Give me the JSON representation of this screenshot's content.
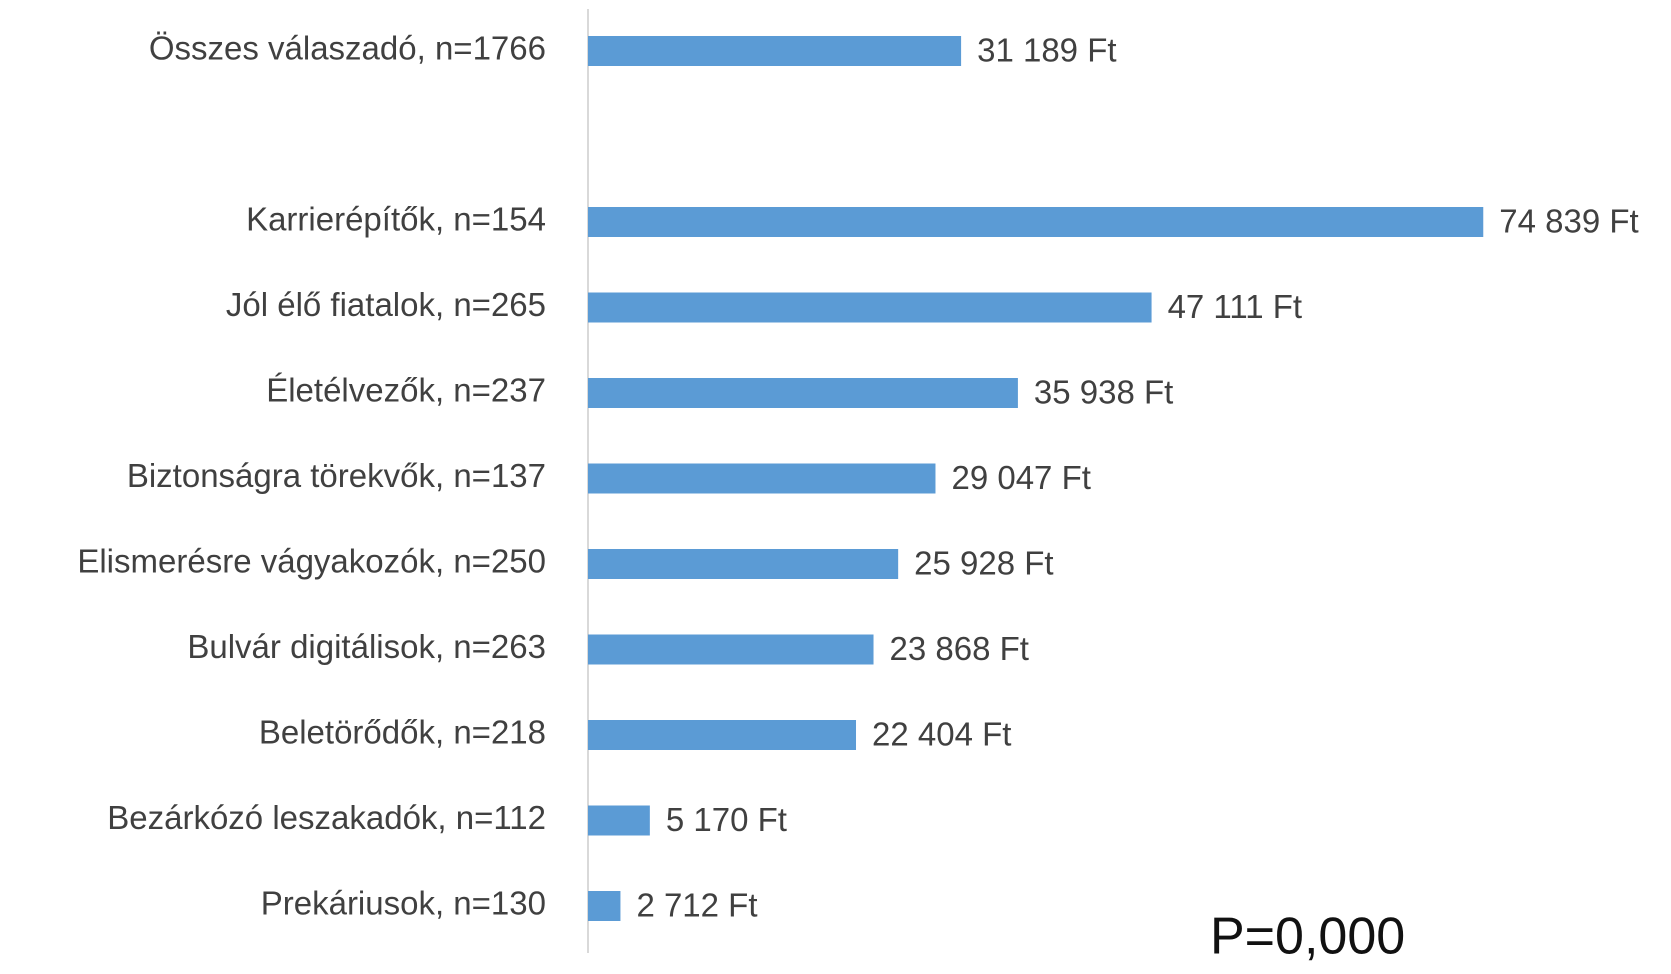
{
  "chart_data": {
    "type": "bar",
    "orientation": "horizontal",
    "categories": [
      "Összes válaszadó, n=1766",
      null,
      "Karrierépítők, n=154",
      "Jól élő fiatalok, n=265",
      "Életélvezők, n=237",
      "Biztonságra törekvők, n=137",
      "Elismerésre vágyakozók, n=250",
      "Bulvár digitálisok, n=263",
      "Beletörődők, n=218",
      "Bezárkózó leszakadók, n=112",
      "Prekáriusok, n=130"
    ],
    "values": [
      31189,
      null,
      74839,
      47111,
      35938,
      29047,
      25928,
      23868,
      22404,
      5170,
      2712
    ],
    "value_labels": [
      "31 189 Ft",
      null,
      "74 839 Ft",
      "47 111 Ft",
      "35 938 Ft",
      "29 047 Ft",
      "25 928 Ft",
      "23 868 Ft",
      "22 404 Ft",
      "5 170 Ft",
      "2 712 Ft"
    ],
    "color": "#5b9bd5",
    "xlim": [
      0,
      80000
    ],
    "annotation": "P=0,000"
  }
}
